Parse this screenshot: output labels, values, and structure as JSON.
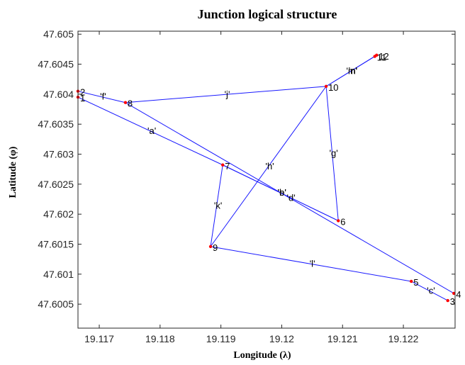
{
  "chart_data": {
    "type": "scatter",
    "title": "Junction logical structure",
    "xlabel": "Longitude (λ)",
    "ylabel": "Latitude (φ)",
    "xlim": [
      19.11665,
      19.12285
    ],
    "ylim": [
      47.6001,
      47.60505
    ],
    "xticks": [
      19.117,
      19.118,
      19.119,
      19.12,
      19.121,
      19.122
    ],
    "xtick_labels": [
      "19.117",
      "19.118",
      "19.119",
      "19.12",
      "19.121",
      "19.122"
    ],
    "yticks": [
      47.6005,
      47.601,
      47.6015,
      47.602,
      47.6025,
      47.603,
      47.6035,
      47.604,
      47.6045,
      47.605
    ],
    "ytick_labels": [
      "47.6005",
      "47.601",
      "47.6015",
      "47.602",
      "47.6025",
      "47.603",
      "47.6035",
      "47.604",
      "47.6045",
      "47.605"
    ],
    "grid": false,
    "nodes": [
      {
        "id": "1",
        "x": 19.11665,
        "y": 47.60395
      },
      {
        "id": "2",
        "x": 19.11665,
        "y": 47.60405
      },
      {
        "id": "3",
        "x": 19.12273,
        "y": 47.60056
      },
      {
        "id": "4",
        "x": 19.12283,
        "y": 47.60068
      },
      {
        "id": "5",
        "x": 19.12213,
        "y": 47.60088
      },
      {
        "id": "6",
        "x": 19.12093,
        "y": 47.60189
      },
      {
        "id": "7",
        "x": 19.11903,
        "y": 47.60282
      },
      {
        "id": "8",
        "x": 19.11743,
        "y": 47.60386
      },
      {
        "id": "9",
        "x": 19.11883,
        "y": 47.60146
      },
      {
        "id": "10",
        "x": 19.12073,
        "y": 47.60413
      },
      {
        "id": "11",
        "x": 19.12153,
        "y": 47.60463
      },
      {
        "id": "12",
        "x": 19.12156,
        "y": 47.60465
      }
    ],
    "edges": [
      {
        "label": "'a'",
        "from": "1",
        "to": "7"
      },
      {
        "label": "'b'",
        "from": "7",
        "to": "6"
      },
      {
        "label": "'c'",
        "from": "3",
        "to": "5"
      },
      {
        "label": "'d'",
        "from": "4",
        "to": "8"
      },
      {
        "label": "'e'",
        "from": "6",
        "to": "7"
      },
      {
        "label": "'f'",
        "from": "2",
        "to": "8"
      },
      {
        "label": "'g'",
        "from": "10",
        "to": "6"
      },
      {
        "label": "'h'",
        "from": "10",
        "to": "9"
      },
      {
        "label": "'j'",
        "from": "8",
        "to": "10"
      },
      {
        "label": "'k'",
        "from": "7",
        "to": "9"
      },
      {
        "label": "'l'",
        "from": "9",
        "to": "5"
      },
      {
        "label": "'m'",
        "from": "10",
        "to": "11"
      },
      {
        "label": "'n'",
        "from": "10",
        "to": "12"
      }
    ],
    "node_color": "#ff0000",
    "edge_color": "#1a1aff"
  }
}
